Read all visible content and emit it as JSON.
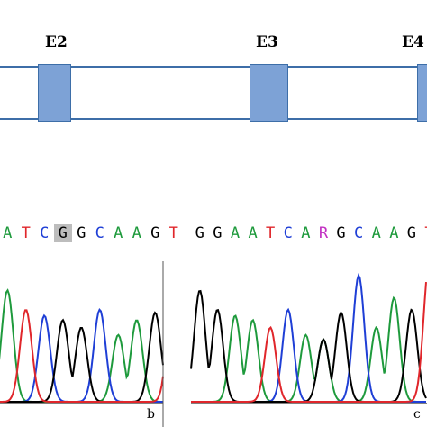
{
  "colors": {
    "A": "#1e9a3c",
    "C": "#1f3fd6",
    "G": "#000000",
    "T": "#e0262b",
    "R": "#c22fc2",
    "exon_fill": "#7da2d6",
    "exon_border": "#3d6ea8"
  },
  "exons": [
    {
      "label": "E2"
    },
    {
      "label": "E3"
    },
    {
      "label": "E4"
    }
  ],
  "panels": [
    {
      "letter": "b",
      "bases": [
        {
          "base": "A"
        },
        {
          "base": "T"
        },
        {
          "base": "C"
        },
        {
          "base": "G",
          "highlight": true
        },
        {
          "base": "G"
        },
        {
          "base": "C"
        },
        {
          "base": "A"
        },
        {
          "base": "A"
        },
        {
          "base": "G"
        },
        {
          "base": "T"
        }
      ]
    },
    {
      "letter": "c",
      "bases": [
        {
          "base": "G"
        },
        {
          "base": "G"
        },
        {
          "base": "A"
        },
        {
          "base": "A"
        },
        {
          "base": "T"
        },
        {
          "base": "C"
        },
        {
          "base": "A"
        },
        {
          "base": "R"
        },
        {
          "base": "G"
        },
        {
          "base": "C"
        },
        {
          "base": "A"
        },
        {
          "base": "A"
        },
        {
          "base": "G"
        },
        {
          "base": "T"
        }
      ]
    }
  ]
}
